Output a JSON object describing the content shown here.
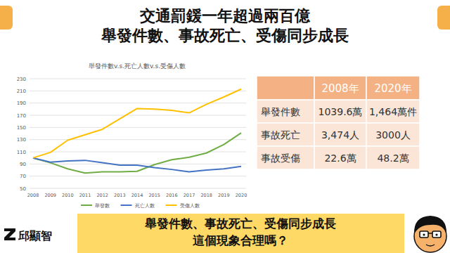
{
  "header": {
    "title_lines": [
      "交通罰鍰一年超過兩百億",
      "舉發件數、事故死亡、受傷同步成長"
    ]
  },
  "chart_data": {
    "type": "line",
    "title": "舉發件數v.s.死亡人數v.s.受傷人數",
    "categories": [
      "2008",
      "2009",
      "2010",
      "2011",
      "2012",
      "2013",
      "2014",
      "2015",
      "2016",
      "2017",
      "2018",
      "2019",
      "2020"
    ],
    "series": [
      {
        "name": "舉發數",
        "color": "#70ad47",
        "marker": "none",
        "values": [
          100,
          92,
          82,
          75,
          77,
          77,
          78,
          89,
          97,
          101,
          108,
          122,
          141
        ]
      },
      {
        "name": "死亡人數",
        "color": "#4472c4",
        "marker": "none",
        "values": [
          100,
          93,
          95,
          96,
          92,
          88,
          88,
          84,
          81,
          77,
          80,
          82,
          86
        ]
      },
      {
        "name": "受傷人數",
        "color": "#ffc000",
        "marker": "none",
        "values": [
          100,
          109,
          129,
          138,
          147,
          164,
          181,
          180,
          178,
          174,
          188,
          200,
          213
        ]
      }
    ],
    "ylim": [
      50,
      230
    ],
    "yticks": [
      50,
      70,
      90,
      110,
      130,
      150,
      170,
      190,
      210,
      230
    ],
    "grid": true,
    "legend": "bottom"
  },
  "table": {
    "columns": [
      "2008年",
      "2020年"
    ],
    "rows": [
      [
        "舉發件數",
        "1039.6萬",
        "1,464萬件"
      ],
      [
        "事故死亡",
        "3,474人",
        "3000人"
      ],
      [
        "事故受傷",
        "22.6萬",
        "48.2萬"
      ]
    ]
  },
  "footer": {
    "question_lines": [
      "舉發件數、事故死亡、受傷同步成長",
      "這個現象合理嗎？"
    ],
    "logo": "邱顯智"
  }
}
